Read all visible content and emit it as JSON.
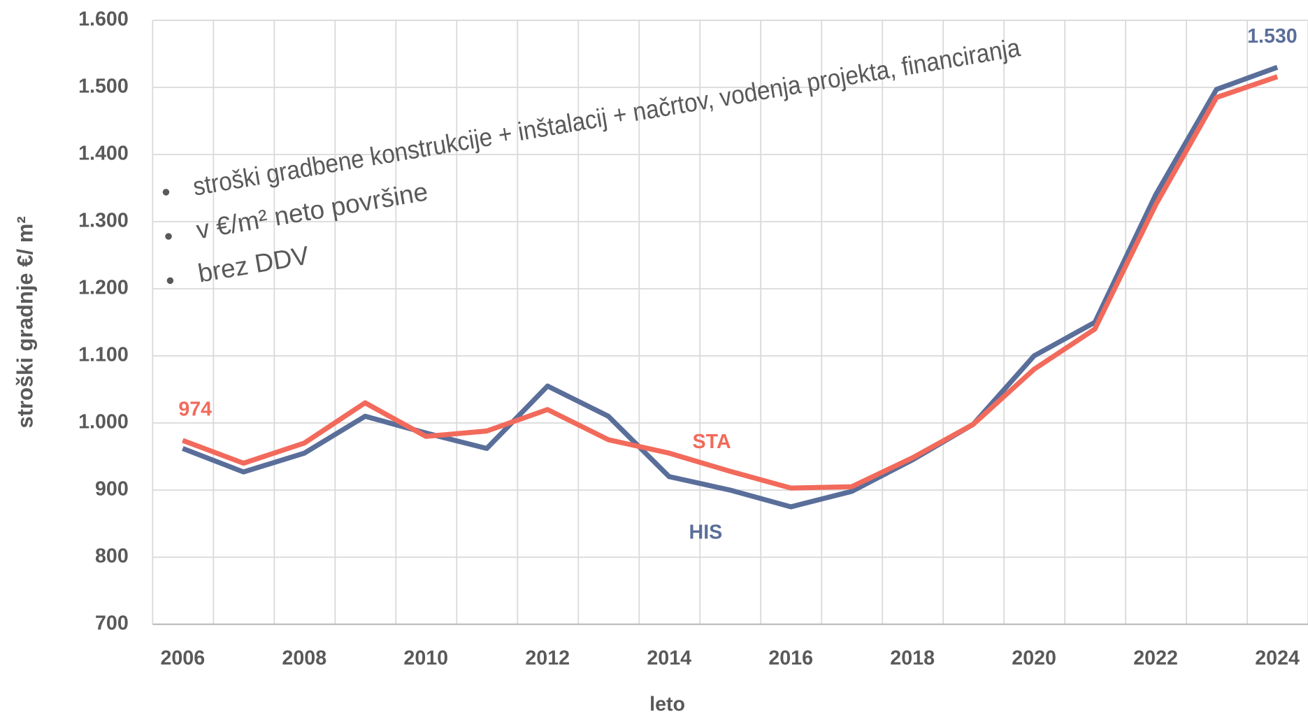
{
  "chart_data": {
    "type": "line",
    "x_label": "leto",
    "y_label": "stroški gradnje €/ m²",
    "annotations": [
      "stroški gradbene konstrukcije + inštalacij + načrtov, vodenja projekta, financiranja",
      "v €/m² neto površine",
      "brez DDV"
    ],
    "categories": [
      "2006",
      null,
      "2008",
      null,
      "2010",
      null,
      "2012",
      null,
      "2014",
      null,
      "2016",
      null,
      "2018",
      null,
      "2020",
      null,
      "2022",
      null,
      "2024"
    ],
    "series": [
      {
        "name": "HIS",
        "color": "#5a6e9a",
        "values": [
          962,
          927,
          955,
          1010,
          985,
          962,
          1055,
          1010,
          920,
          900,
          875,
          898,
          945,
          998,
          1100,
          1150,
          1340,
          1497,
          1530
        ],
        "value_labels": [
          null,
          null,
          null,
          null,
          null,
          null,
          null,
          null,
          null,
          null,
          null,
          null,
          null,
          null,
          null,
          null,
          null,
          null,
          "1.530"
        ]
      },
      {
        "name": "STA",
        "color": "#f26a5b",
        "values": [
          974,
          940,
          970,
          1030,
          980,
          988,
          1020,
          975,
          955,
          928,
          903,
          905,
          948,
          998,
          1080,
          1140,
          1325,
          1485,
          1516
        ],
        "value_labels": [
          "974",
          null,
          null,
          null,
          null,
          null,
          null,
          null,
          null,
          null,
          null,
          null,
          null,
          null,
          null,
          null,
          null,
          null,
          null
        ]
      }
    ],
    "ylim": [
      700,
      1600
    ],
    "yticks": [
      700,
      800,
      900,
      {
        "value": 1000,
        "label": "1.000"
      },
      {
        "value": 1100,
        "label": "1.100"
      },
      {
        "value": 1200,
        "label": "1.200"
      },
      {
        "value": 1300,
        "label": "1.300"
      },
      {
        "value": 1400,
        "label": "1.400"
      },
      {
        "value": 1500,
        "label": "1.500"
      },
      {
        "value": 1600,
        "label": "1.600"
      }
    ],
    "grid": true
  }
}
